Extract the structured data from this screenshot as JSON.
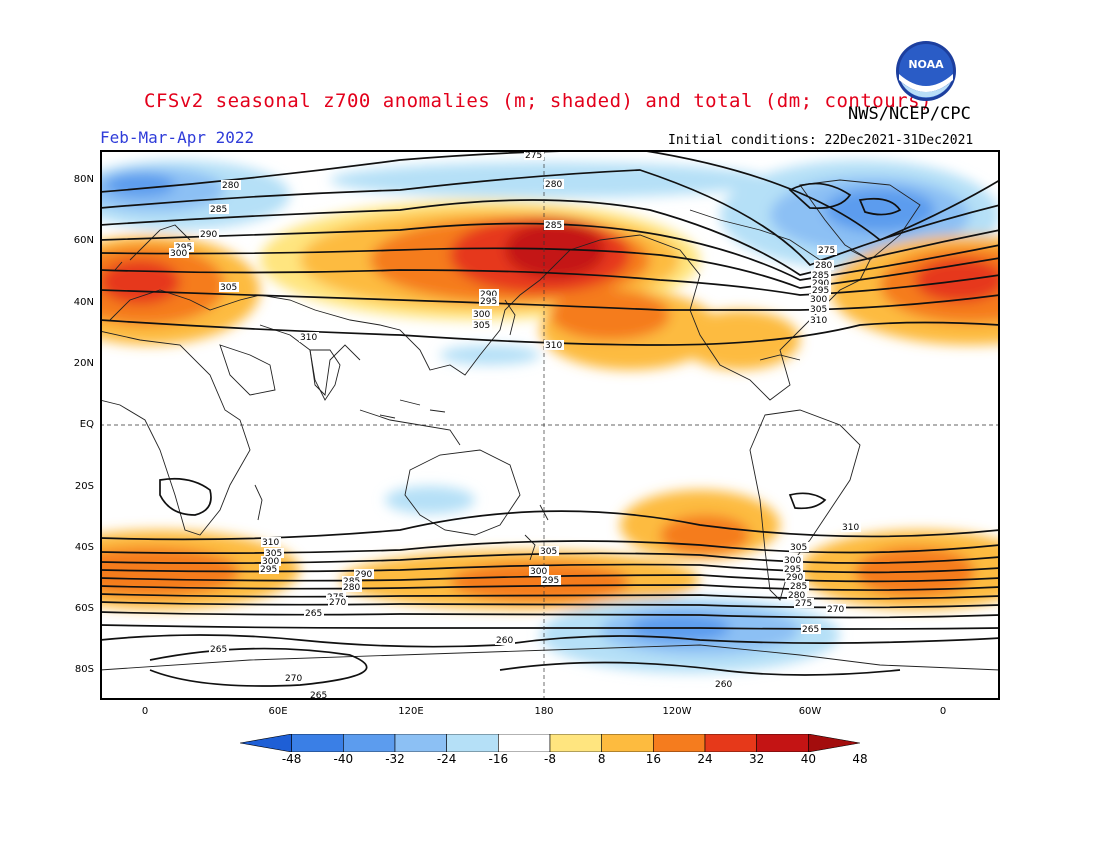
{
  "title": "CFSv2 seasonal z700 anomalies (m; shaded) and total (dm; contours)",
  "period": "Feb-Mar-Apr 2022",
  "agency": "NWS/NCEP/CPC",
  "initial_conditions": "Initial conditions: 22Dec2021-31Dec2021",
  "logo_text": "NOAA",
  "lat_labels": [
    "80N",
    "60N",
    "40N",
    "20N",
    "EQ",
    "20S",
    "40S",
    "60S",
    "80S"
  ],
  "lon_labels": [
    "0",
    "60E",
    "120E",
    "180",
    "120W",
    "60W",
    "0"
  ],
  "colorbar": {
    "labels": [
      "-48",
      "-40",
      "-32",
      "-24",
      "-16",
      "-8",
      "8",
      "16",
      "24",
      "32",
      "40",
      "48"
    ],
    "colors": [
      "#1e5fd6",
      "#3a7fe6",
      "#5c9cee",
      "#8cc0f4",
      "#b5e0f7",
      "#ffffff",
      "#ffe57f",
      "#fdbb3f",
      "#f57c1e",
      "#e6391a",
      "#c41414",
      "#a30d0d"
    ]
  },
  "contour_labels": {
    "north": [
      "275",
      "280",
      "285",
      "290",
      "295",
      "300",
      "305",
      "310",
      "280",
      "285",
      "290",
      "295",
      "300",
      "305",
      "310",
      "275",
      "280",
      "285",
      "290",
      "295",
      "300",
      "305",
      "310",
      "275",
      "280",
      "285"
    ],
    "south": [
      "310",
      "305",
      "300",
      "295",
      "290",
      "285",
      "280",
      "275",
      "270",
      "265",
      "305",
      "300",
      "295",
      "310",
      "305",
      "300",
      "295",
      "290",
      "285",
      "280",
      "275",
      "270",
      "265",
      "260",
      "265",
      "260",
      "270",
      "265"
    ]
  }
}
